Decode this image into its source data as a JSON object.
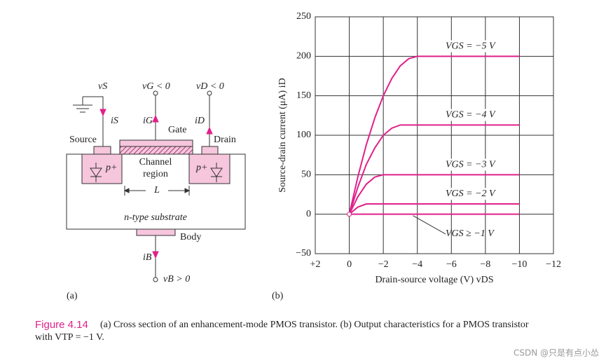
{
  "diagram": {
    "labels": {
      "vS": "vS",
      "vG": "vG < 0",
      "vD": "vD < 0",
      "iS": "iS",
      "iG": "iG",
      "iD": "iD",
      "gate": "Gate",
      "source": "Source",
      "drain": "Drain",
      "p_left": "p+",
      "p_right": "p+",
      "channel_1": "Channel",
      "channel_2": "region",
      "length": "L",
      "substrate": "n-type substrate",
      "body": "Body",
      "iB": "iB",
      "vB": "vB > 0"
    },
    "panel": "(a)"
  },
  "chart_data": {
    "type": "line",
    "panel": "(b)",
    "x_label": "Drain-source voltage (V) vDS",
    "y_label": "Source-drain current (μA) iD",
    "x": [
      0,
      -0.5,
      -1,
      -1.5,
      -2,
      -2.5,
      -3,
      -3.5,
      -4,
      -5,
      -6,
      -7,
      -8,
      -9,
      -10
    ],
    "series": [
      {
        "name": "VGS = −5 V",
        "color": "#e0218a",
        "values": [
          0,
          47,
          88,
          122,
          150,
          172,
          188,
          197,
          200,
          200,
          200,
          200,
          200,
          200,
          200
        ]
      },
      {
        "name": "VGS = −4 V",
        "color": "#e0218a",
        "values": [
          0,
          34,
          63,
          84,
          100,
          109,
          113,
          113,
          113,
          113,
          113,
          113,
          113,
          113,
          113
        ]
      },
      {
        "name": "VGS = −3 V",
        "color": "#e0218a",
        "values": [
          0,
          22,
          38,
          47,
          50,
          50,
          50,
          50,
          50,
          50,
          50,
          50,
          50,
          50,
          50
        ]
      },
      {
        "name": "VGS = −2 V",
        "color": "#e0218a",
        "values": [
          0,
          9,
          13,
          13,
          13,
          13,
          13,
          13,
          13,
          13,
          13,
          13,
          13,
          13,
          13
        ]
      },
      {
        "name": "VGS ≥ −1 V",
        "color": "#e0218a",
        "values": [
          0,
          0,
          0,
          0,
          0,
          0,
          0,
          0,
          0,
          0,
          0,
          0,
          0,
          0,
          0
        ]
      }
    ],
    "xlim": [
      2,
      -12
    ],
    "xticks": [
      {
        "value": 2,
        "label": "+2"
      },
      0,
      {
        "value": -2,
        "label": "−2"
      },
      {
        "value": -4,
        "label": "−4"
      },
      {
        "value": -6,
        "label": "−6"
      },
      {
        "value": -8,
        "label": "−8"
      },
      {
        "value": -10,
        "label": "−10"
      },
      {
        "value": -12,
        "label": "−12"
      }
    ],
    "ylim": [
      -50,
      250
    ],
    "yticks": [
      {
        "value": -50,
        "label": "−50"
      },
      0,
      50,
      100,
      150,
      200,
      250
    ],
    "grid": true
  },
  "caption": {
    "label": "Figure 4.14",
    "text": "(a) Cross section of an enhancement-mode PMOS transistor. (b) Output characteristics for a PMOS transistor",
    "text_2": "with VTP = −1 V."
  },
  "watermark": "CSDN @只是有点小怂"
}
